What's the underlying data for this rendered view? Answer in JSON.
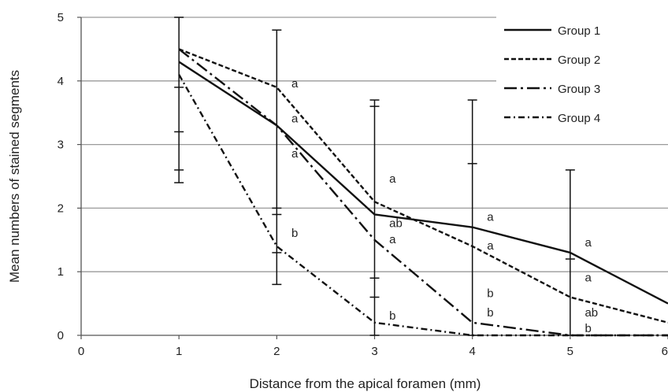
{
  "chart_data": {
    "type": "line",
    "title": "",
    "xlabel": "Distance from the apical foramen (mm)",
    "ylabel": "Mean numbers of stained segments",
    "xlim": [
      0,
      6
    ],
    "ylim": [
      0,
      5
    ],
    "xticks": [
      "0",
      "1",
      "2",
      "3",
      "4",
      "5",
      "6"
    ],
    "yticks": [
      "0",
      "1",
      "2",
      "3",
      "4",
      "5"
    ],
    "grid": "horizontal",
    "legend_position": "top-right",
    "x": [
      1,
      2,
      3,
      4,
      5,
      6
    ],
    "series": [
      {
        "name": "Group 1",
        "style": "solid",
        "values": [
          4.3,
          3.3,
          1.9,
          1.7,
          1.3,
          0.5
        ]
      },
      {
        "name": "Group 2",
        "style": "dashed",
        "values": [
          4.5,
          3.9,
          2.1,
          1.4,
          0.6,
          0.2
        ]
      },
      {
        "name": "Group 3",
        "style": "long-dash-dot",
        "values": [
          4.5,
          3.3,
          1.5,
          0.2,
          0.0,
          0.0
        ]
      },
      {
        "name": "Group 4",
        "style": "dash-dot",
        "values": [
          4.1,
          1.4,
          0.2,
          0.0,
          0.0,
          0.0
        ]
      }
    ],
    "error_bars": [
      {
        "x": 1,
        "low": 2.4,
        "high": 5.0,
        "ticks": [
          3.2,
          3.9,
          2.6
        ]
      },
      {
        "x": 2,
        "low": 0.8,
        "high": 4.8,
        "ticks": [
          2.0,
          1.9,
          1.3
        ]
      },
      {
        "x": 3,
        "low": 0.0,
        "high": 3.7,
        "ticks": [
          3.6,
          0.9,
          0.6
        ]
      },
      {
        "x": 4,
        "low": 0.0,
        "high": 3.7,
        "ticks": [
          2.7
        ]
      },
      {
        "x": 5,
        "low": 0.0,
        "high": 2.6,
        "ticks": [
          1.2
        ]
      }
    ],
    "annotations": [
      {
        "text": "a",
        "x": 2.15,
        "y": 3.9
      },
      {
        "text": "a",
        "x": 2.15,
        "y": 3.35
      },
      {
        "text": "a",
        "x": 2.15,
        "y": 2.8
      },
      {
        "text": "b",
        "x": 2.15,
        "y": 1.55
      },
      {
        "text": "a",
        "x": 3.15,
        "y": 2.4
      },
      {
        "text": "ab",
        "x": 3.15,
        "y": 1.7
      },
      {
        "text": "a",
        "x": 3.15,
        "y": 1.45
      },
      {
        "text": "b",
        "x": 3.15,
        "y": 0.25
      },
      {
        "text": "a",
        "x": 4.15,
        "y": 1.8
      },
      {
        "text": "a",
        "x": 4.15,
        "y": 1.35
      },
      {
        "text": "b",
        "x": 4.15,
        "y": 0.6
      },
      {
        "text": "b",
        "x": 4.15,
        "y": 0.3
      },
      {
        "text": "a",
        "x": 5.15,
        "y": 1.4
      },
      {
        "text": "a",
        "x": 5.15,
        "y": 0.85
      },
      {
        "text": "ab",
        "x": 5.15,
        "y": 0.3
      },
      {
        "text": "b",
        "x": 5.15,
        "y": 0.05
      }
    ],
    "colors": {
      "line": "#111111",
      "grid": "#9a9a9a",
      "axis": "#555555"
    }
  }
}
